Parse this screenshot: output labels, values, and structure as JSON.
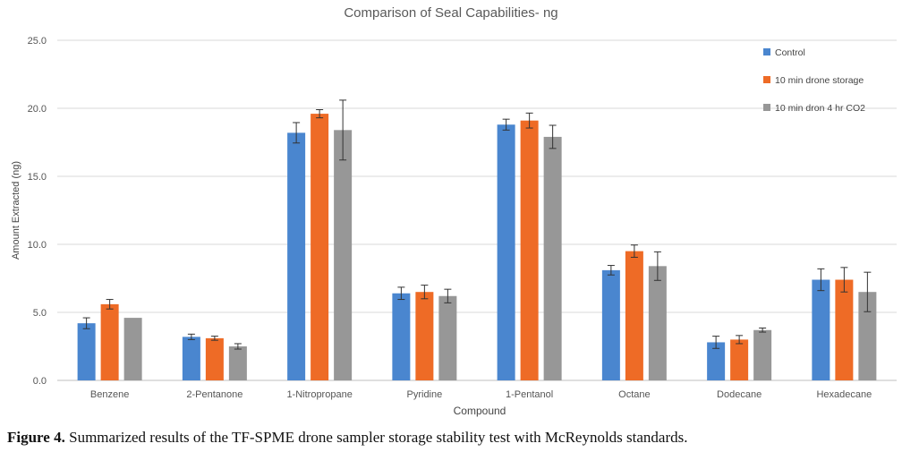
{
  "chart_data": {
    "type": "bar",
    "title": "Comparison of Seal Capabilities- ng",
    "xlabel": "Compound",
    "ylabel": "Amount Extracted (ng)",
    "ylim": [
      0,
      25
    ],
    "yticks": [
      "0.0",
      "5.0",
      "10.0",
      "15.0",
      "20.0",
      "25.0"
    ],
    "grid": true,
    "legend_position": "top-right",
    "categories": [
      "Benzene",
      "2-Pentanone",
      "1-Nitropropane",
      "Pyridine",
      "1-Pentanol",
      "Octane",
      "Dodecane",
      "Hexadecane"
    ],
    "series": [
      {
        "name": "Control",
        "color": "#4a86cf",
        "values": [
          4.2,
          3.2,
          18.2,
          6.4,
          18.8,
          8.1,
          2.8,
          7.4
        ],
        "errors": [
          0.4,
          0.2,
          0.75,
          0.45,
          0.4,
          0.35,
          0.45,
          0.8
        ]
      },
      {
        "name": "10 min drone storage",
        "color": "#ee6b26",
        "values": [
          5.6,
          3.1,
          19.6,
          6.5,
          19.1,
          9.5,
          3.0,
          7.4
        ],
        "errors": [
          0.35,
          0.15,
          0.3,
          0.5,
          0.55,
          0.45,
          0.3,
          0.9
        ]
      },
      {
        "name": "10 min dron 4 hr CO2",
        "color": "#979797",
        "values": [
          4.6,
          2.5,
          18.4,
          6.2,
          17.9,
          8.4,
          3.7,
          6.5
        ],
        "errors": [
          0.0,
          0.2,
          2.2,
          0.5,
          0.85,
          1.05,
          0.15,
          1.45
        ]
      }
    ]
  },
  "caption": {
    "label": "Figure 4.",
    "text": " Summarized results of the TF-SPME drone sampler storage stability test with McReynolds standards."
  }
}
